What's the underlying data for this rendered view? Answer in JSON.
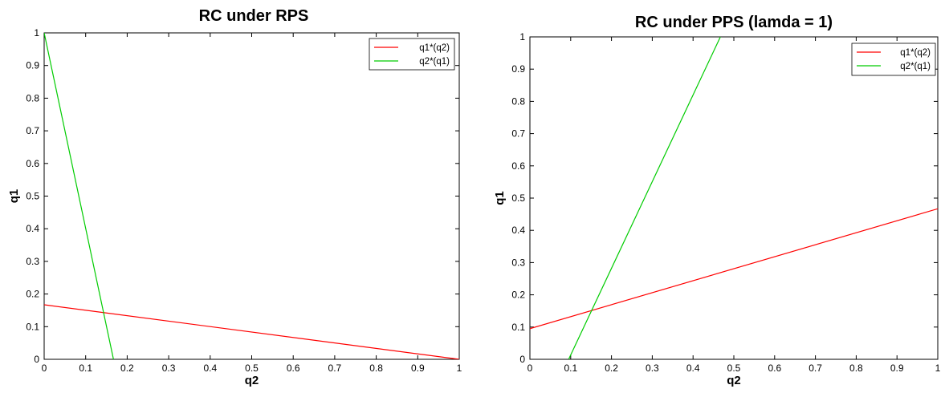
{
  "chart_data": [
    {
      "type": "line",
      "title": "RC under RPS",
      "xlabel": "q2",
      "ylabel": "q1",
      "xlim": [
        0,
        1
      ],
      "ylim": [
        0,
        1
      ],
      "xticks": [
        "0",
        "0.1",
        "0.2",
        "0.3",
        "0.4",
        "0.5",
        "0.6",
        "0.7",
        "0.8",
        "0.9",
        "1"
      ],
      "yticks": [
        "0",
        "0.1",
        "0.2",
        "0.3",
        "0.4",
        "0.5",
        "0.6",
        "0.7",
        "0.8",
        "0.9",
        "1"
      ],
      "legend_position": "top-right",
      "series": [
        {
          "name": "q1*(q2)",
          "color": "#ff0000",
          "points": [
            [
              0,
              0.167
            ],
            [
              1,
              0.0
            ]
          ]
        },
        {
          "name": "q2*(q1)",
          "color": "#00cc00",
          "points": [
            [
              0,
              1.0
            ],
            [
              0.167,
              0.0
            ]
          ]
        }
      ]
    },
    {
      "type": "line",
      "title": "RC under PPS (lamda = 1)",
      "xlabel": "q2",
      "ylabel": "q1",
      "xlim": [
        0,
        1
      ],
      "ylim": [
        0,
        1
      ],
      "xticks": [
        "0",
        "0.1",
        "0.2",
        "0.3",
        "0.4",
        "0.5",
        "0.6",
        "0.7",
        "0.8",
        "0.9",
        "1"
      ],
      "yticks": [
        "0",
        "0.1",
        "0.2",
        "0.3",
        "0.4",
        "0.5",
        "0.6",
        "0.7",
        "0.8",
        "0.9",
        "1"
      ],
      "legend_position": "top-right",
      "series": [
        {
          "name": "q1*(q2)",
          "color": "#ff0000",
          "points": [
            [
              0,
              0.095
            ],
            [
              1,
              0.467
            ]
          ]
        },
        {
          "name": "q2*(q1)",
          "color": "#00cc00",
          "points": [
            [
              0.095,
              0.0
            ],
            [
              0.467,
              1.0
            ]
          ]
        }
      ]
    }
  ]
}
